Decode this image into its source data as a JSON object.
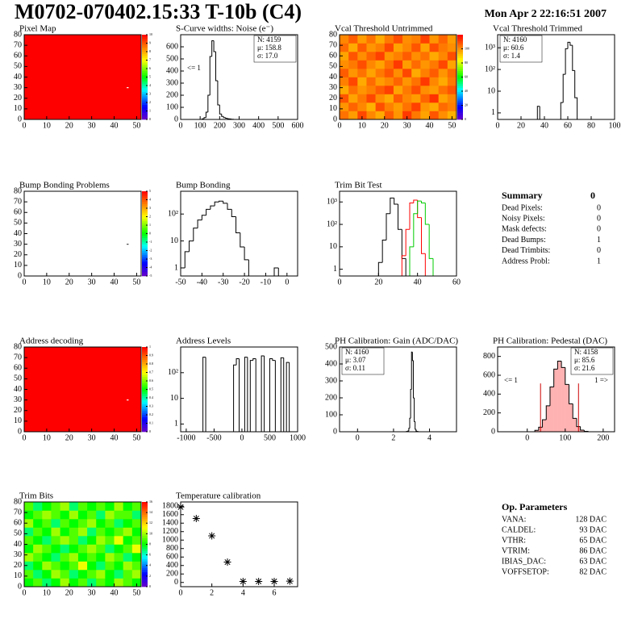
{
  "header": {
    "title": "M0702-070402.15:33 T-10b (C4)",
    "date": "Mon Apr  2 22:16:51 2007"
  },
  "chart_data": [
    {
      "type": "heatmap",
      "title": "Pixel Map",
      "xlim": [
        0,
        52
      ],
      "ylim": [
        0,
        80
      ],
      "xticks": [
        0,
        10,
        20,
        30,
        40,
        50
      ],
      "yticks": [
        0,
        10,
        20,
        30,
        40,
        50,
        60,
        70,
        80
      ],
      "zlim": [
        0,
        10
      ],
      "zticks": [
        0,
        1,
        2,
        3,
        4,
        5,
        6,
        7,
        8,
        9,
        10
      ],
      "z": [
        [
          10
        ]
      ],
      "points": [
        {
          "x": 46,
          "y": 30,
          "color": "#ffffff"
        }
      ]
    },
    {
      "type": "histogram",
      "title": "S-Curve widths: Noise (e⁻)",
      "xlim": [
        0,
        600
      ],
      "ylim": [
        0,
        700
      ],
      "xticks": [
        0,
        100,
        200,
        300,
        400,
        500,
        600
      ],
      "yticks": [
        0,
        100,
        200,
        300,
        400,
        500,
        600
      ],
      "bins": [
        110,
        120,
        130,
        140,
        150,
        160,
        170,
        180,
        190,
        200,
        210,
        220,
        230,
        240,
        250,
        260,
        270
      ],
      "series": [
        {
          "color": "#000000",
          "values": [
            5,
            15,
            60,
            200,
            520,
            650,
            560,
            320,
            120,
            45,
            25,
            15,
            10,
            6,
            4,
            2
          ]
        }
      ],
      "stats": [
        {
          "text": "N: 4159",
          "color": "#000000"
        },
        {
          "text": "μ: 158.8",
          "color": "#000000"
        },
        {
          "text": "σ: 17.0",
          "color": "#000000"
        }
      ],
      "stats_corner": "top-right",
      "underflow_label": "<= 1"
    },
    {
      "type": "heatmap",
      "title": "Vcal Threshold Untrimmed",
      "xlim": [
        0,
        52
      ],
      "ylim": [
        0,
        80
      ],
      "xticks": [
        0,
        10,
        20,
        30,
        40,
        50
      ],
      "yticks": [
        0,
        10,
        20,
        30,
        40,
        50,
        60,
        70,
        80
      ],
      "zlim": [
        0,
        120
      ],
      "zticks": [
        0,
        20,
        40,
        60,
        80,
        100
      ],
      "z": [
        [
          104,
          98,
          110,
          101,
          96,
          107,
          99,
          112,
          103,
          97,
          108,
          100,
          95
        ],
        [
          99,
          106,
          101,
          95,
          109,
          102,
          98,
          104,
          111,
          99,
          96,
          105,
          102
        ],
        [
          108,
          97,
          103,
          110,
          100,
          96,
          107,
          101,
          98,
          106,
          113,
          97,
          101
        ],
        [
          96,
          104,
          99,
          102,
          107,
          111,
          97,
          103,
          109,
          100,
          98,
          104,
          108
        ],
        [
          102,
          110,
          96,
          105,
          98,
          101,
          106,
          99,
          104,
          112,
          101,
          96,
          103
        ],
        [
          107,
          99,
          104,
          97,
          103,
          108,
          100,
          110,
          96,
          102,
          107,
          99,
          105
        ],
        [
          100,
          103,
          109,
          101,
          97,
          104,
          112,
          98,
          105,
          99,
          103,
          110,
          97
        ],
        [
          97,
          108,
          100,
          106,
          111,
          99,
          102,
          107,
          100,
          104,
          96,
          101,
          109
        ],
        [
          105,
          96,
          107,
          99,
          102,
          110,
          97,
          101,
          108,
          97,
          109,
          103,
          100
        ],
        [
          101,
          107,
          98,
          104,
          96,
          103,
          109,
          100,
          102,
          111,
          99,
          106,
          98
        ]
      ]
    },
    {
      "type": "histogram",
      "title": "Vcal Threshold Trimmed",
      "log_y": true,
      "xlim": [
        0,
        100
      ],
      "ylim": [
        0.5,
        4000
      ],
      "xticks": [
        0,
        20,
        40,
        60,
        80,
        100
      ],
      "yticks": [
        1,
        10,
        {
          "value": 100,
          "label": "10²"
        },
        {
          "value": 1000,
          "label": "10³"
        }
      ],
      "bins": [
        34,
        36,
        38,
        40,
        42,
        44,
        46,
        48,
        50,
        52,
        54,
        56,
        58,
        60,
        62,
        64,
        66,
        68
      ],
      "series": [
        {
          "color": "#000000",
          "values": [
            2,
            0,
            0,
            0,
            0,
            0,
            0,
            0,
            0,
            0,
            3,
            60,
            900,
            1800,
            1300,
            90,
            5
          ]
        }
      ],
      "stats": [
        {
          "text": "N: 4160",
          "color": "#000000"
        },
        {
          "text": "μ: 60.6",
          "color": "#000000"
        },
        {
          "text": "σ:  1.4",
          "color": "#000000"
        }
      ],
      "stats_corner": "top-left"
    },
    {
      "type": "heatmap",
      "title": "Bump Bonding Problems",
      "xlim": [
        0,
        52
      ],
      "ylim": [
        0,
        80
      ],
      "xticks": [
        0,
        10,
        20,
        30,
        40,
        50
      ],
      "yticks": [
        0,
        10,
        20,
        30,
        40,
        50,
        60,
        70,
        80
      ],
      "zlim": [
        -5,
        5
      ],
      "zticks": [
        -5,
        -4,
        -3,
        -2,
        -1,
        0,
        1,
        2,
        3,
        4,
        5
      ],
      "z": [],
      "points": [
        {
          "x": 46,
          "y": 30,
          "color": "#444444"
        }
      ]
    },
    {
      "type": "histogram",
      "title": "Bump Bonding",
      "log_y": true,
      "xlim": [
        -50,
        5
      ],
      "ylim": [
        0.5,
        700
      ],
      "xticks": [
        -50,
        -40,
        -30,
        -20,
        -10,
        0
      ],
      "yticks": [
        1,
        10,
        {
          "value": 100,
          "label": "10²"
        }
      ],
      "bins": [
        -50,
        -48,
        -46,
        -44,
        -42,
        -40,
        -38,
        -36,
        -34,
        -32,
        -30,
        -28,
        -26,
        -24,
        -22,
        -20,
        -18,
        -16,
        -14,
        -12,
        -10,
        -8,
        -6,
        -4,
        -2
      ],
      "series": [
        {
          "color": "#000000",
          "values": [
            1,
            4,
            10,
            30,
            60,
            90,
            150,
            200,
            280,
            300,
            250,
            150,
            80,
            20,
            6,
            2,
            0,
            0,
            0,
            0,
            0,
            0,
            1,
            0
          ]
        }
      ]
    },
    {
      "type": "histogram",
      "title": "Trim Bit Test",
      "log_y": true,
      "xlim": [
        0,
        60
      ],
      "ylim": [
        0.5,
        3000
      ],
      "xticks": [
        0,
        20,
        40,
        60
      ],
      "yticks": [
        1,
        10,
        {
          "value": 100,
          "label": "10²"
        },
        {
          "value": 1000,
          "label": "10³"
        }
      ],
      "bins": [
        18,
        20,
        22,
        24,
        26,
        28,
        30,
        32,
        34,
        36,
        38,
        40,
        42,
        44,
        46,
        48,
        50,
        52,
        54,
        56,
        58,
        60
      ],
      "series": [
        {
          "color": "#000000",
          "values": [
            0,
            2,
            20,
            300,
            1500,
            800,
            60,
            3,
            0,
            0,
            0,
            0,
            0,
            0,
            0,
            0,
            0,
            0,
            0,
            0,
            0
          ]
        },
        {
          "color": "#ff0000",
          "values": [
            0,
            0,
            0,
            0,
            0,
            0,
            0,
            4,
            60,
            900,
            1200,
            200,
            5,
            0,
            0,
            0,
            0,
            0,
            0,
            0,
            0
          ]
        },
        {
          "color": "#00cc00",
          "values": [
            0,
            0,
            0,
            0,
            0,
            0,
            0,
            0,
            0,
            10,
            300,
            1100,
            900,
            100,
            3,
            0,
            0,
            0,
            0,
            0,
            0
          ]
        }
      ]
    },
    {
      "type": "heatmap",
      "title": "Address decoding",
      "xlim": [
        0,
        52
      ],
      "ylim": [
        0,
        80
      ],
      "xticks": [
        0,
        10,
        20,
        30,
        40,
        50
      ],
      "yticks": [
        0,
        10,
        20,
        30,
        40,
        50,
        60,
        70,
        80
      ],
      "zlim": [
        0,
        1
      ],
      "zticks": [
        0,
        0.1,
        0.2,
        0.3,
        0.4,
        0.5,
        0.6,
        0.7,
        0.8,
        0.9,
        1
      ],
      "z": [
        [
          1
        ]
      ],
      "points": [
        {
          "x": 46,
          "y": 30,
          "color": "#ffffff"
        }
      ]
    },
    {
      "type": "histogram",
      "title": "Address Levels",
      "log_y": true,
      "xlim": [
        -1100,
        1000
      ],
      "ylim": [
        0.5,
        1000
      ],
      "xticks": [
        -1000,
        -500,
        0,
        500,
        1000
      ],
      "yticks": [
        1,
        10,
        {
          "value": 100,
          "label": "10²"
        }
      ],
      "bins": [
        -800,
        -750,
        -700,
        -650,
        -600,
        -550,
        -500,
        -450,
        -400,
        -350,
        -300,
        -250,
        -200,
        -150,
        -100,
        -50,
        0,
        50,
        100,
        150,
        200,
        250,
        300,
        350,
        400,
        450,
        500,
        550,
        600,
        650,
        700,
        750,
        800,
        850,
        900
      ],
      "series": [
        {
          "color": "#000000",
          "values": [
            0,
            0,
            400,
            0,
            0,
            0,
            0,
            0,
            0,
            0,
            0,
            0,
            0,
            200,
            350,
            0,
            0,
            400,
            0,
            300,
            350,
            0,
            0,
            450,
            0,
            0,
            350,
            300,
            0,
            0,
            380,
            0,
            250,
            0
          ]
        }
      ]
    },
    {
      "type": "histogram",
      "title": "PH Calibration: Gain (ADC/DAC)",
      "xlim": [
        -1,
        5.5
      ],
      "ylim": [
        0,
        500
      ],
      "xticks": [
        0,
        2,
        4
      ],
      "yticks": [
        0,
        100,
        200,
        300,
        400,
        500
      ],
      "bins": [
        2.7,
        2.75,
        2.8,
        2.85,
        2.9,
        2.95,
        3,
        3.05,
        3.1,
        3.15,
        3.2,
        3.25,
        3.3,
        3.35,
        3.4,
        3.45,
        3.5
      ],
      "series": [
        {
          "color": "#000000",
          "values": [
            1,
            2,
            5,
            20,
            80,
            250,
            470,
            420,
            200,
            60,
            15,
            5,
            2,
            1,
            0,
            0
          ]
        }
      ],
      "stats": [
        {
          "text": "N: 4160",
          "color": "#000000"
        },
        {
          "text": "μ: 3.07",
          "color": "#000000"
        },
        {
          "text": "σ: 0.11",
          "color": "#000000"
        }
      ],
      "stats_corner": "top-left"
    },
    {
      "type": "histogram",
      "title": "PH Calibration: Pedestal (DAC)",
      "xlim": [
        -78,
        230
      ],
      "ylim": [
        0,
        900
      ],
      "xticks": [
        0,
        100,
        200
      ],
      "yticks": [
        0,
        200,
        400,
        600,
        800
      ],
      "bins": [
        20,
        30,
        40,
        50,
        60,
        70,
        80,
        90,
        100,
        110,
        120,
        130,
        140,
        150,
        160
      ],
      "series": [
        {
          "color": "#000000",
          "values": [
            15,
            48,
            128,
            275,
            476,
            665,
            750,
            683,
            502,
            297,
            143,
            55,
            17,
            4
          ]
        }
      ],
      "fill_color": "#ff0000",
      "cut_lines": [
        35,
        135
      ],
      "cut_color": "#cc0000",
      "stats": [
        {
          "text": "N: 4158",
          "color": "#000000"
        },
        {
          "text": "μ: 85.6",
          "color": "#cc0000"
        },
        {
          "text": "σ: 21.6",
          "color": "#cc0000"
        }
      ],
      "stats_corner": "top-right",
      "underflow_label": "<= 1",
      "overflow_label": "1 =>"
    },
    {
      "type": "heatmap",
      "title": "Trim Bits",
      "xlim": [
        0,
        52
      ],
      "ylim": [
        0,
        80
      ],
      "xticks": [
        0,
        10,
        20,
        30,
        40,
        50
      ],
      "yticks": [
        0,
        10,
        20,
        30,
        40,
        50,
        60,
        70,
        80
      ],
      "zlim": [
        0,
        16
      ],
      "zticks": [
        0,
        2,
        4,
        6,
        8,
        10,
        12,
        14,
        16
      ],
      "z": [
        [
          8,
          9,
          7,
          8,
          10,
          8,
          9,
          7,
          9,
          8,
          10,
          9,
          8
        ],
        [
          9,
          7,
          8,
          10,
          9,
          7,
          8,
          9,
          10,
          8,
          7,
          9,
          10
        ],
        [
          7,
          8,
          10,
          9,
          8,
          9,
          11,
          8,
          7,
          9,
          8,
          10,
          9
        ],
        [
          10,
          9,
          8,
          7,
          9,
          10,
          8,
          9,
          8,
          10,
          9,
          7,
          8
        ],
        [
          8,
          10,
          9,
          8,
          7,
          8,
          9,
          10,
          9,
          7,
          8,
          9,
          11
        ],
        [
          9,
          8,
          7,
          9,
          10,
          9,
          7,
          8,
          10,
          9,
          11,
          8,
          9
        ],
        [
          7,
          9,
          8,
          10,
          8,
          9,
          10,
          7,
          9,
          8,
          9,
          10,
          8
        ],
        [
          10,
          8,
          9,
          7,
          9,
          8,
          9,
          10,
          8,
          9,
          7,
          8,
          9
        ],
        [
          8,
          9,
          10,
          9,
          8,
          10,
          8,
          9,
          7,
          10,
          9,
          9,
          7
        ],
        [
          9,
          7,
          8,
          9,
          10,
          7,
          9,
          8,
          9,
          8,
          10,
          8,
          9
        ]
      ]
    },
    {
      "type": "scatter",
      "title": "Temperature calibration",
      "xlim": [
        0,
        7.5
      ],
      "ylim": [
        -100,
        1900
      ],
      "xticks": [
        0,
        2,
        4,
        6
      ],
      "yticks": [
        0,
        200,
        400,
        600,
        800,
        1000,
        1200,
        1400,
        1600,
        1800
      ],
      "x": [
        0,
        1,
        2,
        3,
        4,
        5,
        6,
        7
      ],
      "y": [
        1780,
        1510,
        1100,
        480,
        25,
        25,
        25,
        30
      ],
      "color": "#000000"
    }
  ],
  "summary": {
    "title": "Summary",
    "total": "0",
    "rows": [
      [
        "Dead Pixels:",
        "0"
      ],
      [
        "Noisy Pixels:",
        "0"
      ],
      [
        "Mask defects:",
        "0"
      ],
      [
        "Dead Bumps:",
        "1"
      ],
      [
        "Dead Trimbits:",
        "0"
      ],
      [
        "Address Probl:",
        "1"
      ]
    ]
  },
  "op_parameters": {
    "title": "Op. Parameters",
    "rows": [
      [
        "VANA:",
        "128 DAC"
      ],
      [
        "CALDEL:",
        "93 DAC"
      ],
      [
        "VTHR:",
        "65 DAC"
      ],
      [
        "VTRIM:",
        "86 DAC"
      ],
      [
        "IBIAS_DAC:",
        "63 DAC"
      ],
      [
        "VOFFSETOP:",
        "82 DAC"
      ]
    ]
  }
}
